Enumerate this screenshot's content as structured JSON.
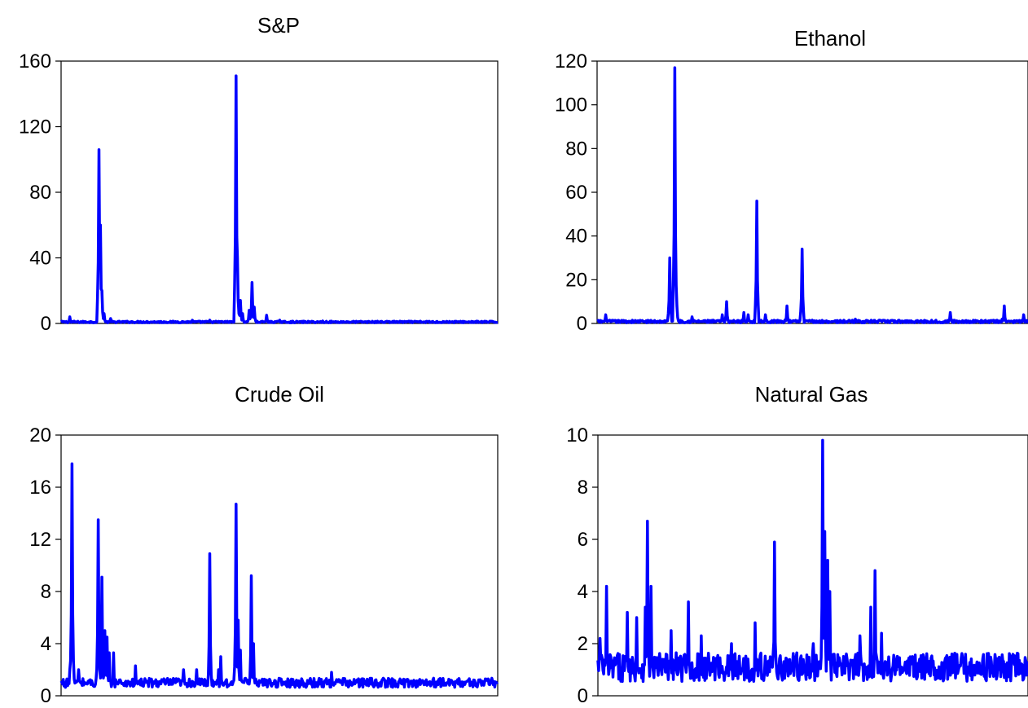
{
  "chart_data": [
    {
      "type": "line",
      "title": "S&P",
      "xlabel": "",
      "ylabel": "",
      "ylim": [
        0,
        160
      ],
      "yticks": [
        0,
        40,
        80,
        120,
        160
      ],
      "ytick_labels": [
        "0",
        "40",
        "80",
        "120",
        "160"
      ],
      "n_points": 600,
      "grid": false,
      "color": "#0000ff",
      "baseline": {
        "level": 0.9,
        "noise": 0.5
      },
      "spikes": [
        [
          0.02,
          4
        ],
        [
          0.086,
          106
        ],
        [
          0.09,
          60
        ],
        [
          0.094,
          20
        ],
        [
          0.099,
          6
        ],
        [
          0.113,
          3
        ],
        [
          0.3,
          2
        ],
        [
          0.34,
          2
        ],
        [
          0.4,
          151
        ],
        [
          0.404,
          40
        ],
        [
          0.41,
          14
        ],
        [
          0.415,
          6
        ],
        [
          0.43,
          8
        ],
        [
          0.437,
          25
        ],
        [
          0.443,
          10
        ],
        [
          0.47,
          5
        ],
        [
          0.5,
          2
        ],
        [
          0.6,
          1.5
        ],
        [
          0.75,
          1.2
        ]
      ],
      "x": [],
      "values": []
    },
    {
      "type": "line",
      "title": "Ethanol",
      "xlabel": "",
      "ylabel": "",
      "ylim": [
        0,
        120
      ],
      "yticks": [
        0,
        20,
        40,
        60,
        80,
        100,
        120
      ],
      "ytick_labels": [
        "0",
        "20",
        "40",
        "60",
        "80",
        "100",
        "120"
      ],
      "n_points": 600,
      "grid": false,
      "color": "#0000ff",
      "baseline": {
        "level": 0.9,
        "noise": 0.6
      },
      "spikes": [
        [
          0.02,
          4
        ],
        [
          0.168,
          30
        ],
        [
          0.18,
          117
        ],
        [
          0.185,
          8
        ],
        [
          0.22,
          3
        ],
        [
          0.29,
          4
        ],
        [
          0.3,
          10
        ],
        [
          0.34,
          5
        ],
        [
          0.35,
          4
        ],
        [
          0.37,
          56
        ],
        [
          0.39,
          4
        ],
        [
          0.44,
          8
        ],
        [
          0.475,
          34
        ],
        [
          0.6,
          2
        ],
        [
          0.82,
          5
        ],
        [
          0.94,
          2
        ],
        [
          0.945,
          8
        ],
        [
          0.99,
          4
        ]
      ],
      "x": [],
      "values": []
    },
    {
      "type": "line",
      "title": "Crude Oil",
      "xlabel": "",
      "ylabel": "",
      "ylim": [
        0,
        20
      ],
      "yticks": [
        0,
        4,
        8,
        12,
        16,
        20
      ],
      "ytick_labels": [
        "0",
        "4",
        "8",
        "12",
        "16",
        "20"
      ],
      "n_points": 600,
      "grid": false,
      "color": "#0000ff",
      "baseline": {
        "level": 1.0,
        "noise": 0.35
      },
      "spikes": [
        [
          0.02,
          2
        ],
        [
          0.025,
          17.8
        ],
        [
          0.04,
          2
        ],
        [
          0.085,
          13.5
        ],
        [
          0.093,
          9.1
        ],
        [
          0.1,
          5
        ],
        [
          0.105,
          4.5
        ],
        [
          0.11,
          3.3
        ],
        [
          0.12,
          3.3
        ],
        [
          0.17,
          2.3
        ],
        [
          0.28,
          2
        ],
        [
          0.31,
          2
        ],
        [
          0.34,
          1.5
        ],
        [
          0.34,
          10.9
        ],
        [
          0.36,
          2
        ],
        [
          0.365,
          3
        ],
        [
          0.4,
          14.7
        ],
        [
          0.405,
          5.8
        ],
        [
          0.41,
          3.5
        ],
        [
          0.435,
          9.2
        ],
        [
          0.44,
          4
        ],
        [
          0.62,
          1.8
        ]
      ],
      "x": [],
      "values": []
    },
    {
      "type": "line",
      "title": "Natural Gas",
      "xlabel": "",
      "ylabel": "",
      "ylim": [
        0,
        10
      ],
      "yticks": [
        0,
        2,
        4,
        6,
        8,
        10
      ],
      "ytick_labels": [
        "0",
        "2",
        "4",
        "6",
        "8",
        "10"
      ],
      "n_points": 600,
      "grid": false,
      "color": "#0000ff",
      "baseline": {
        "level": 1.1,
        "noise": 0.55
      },
      "spikes": [
        [
          0.005,
          2.2
        ],
        [
          0.02,
          4.2
        ],
        [
          0.068,
          3.2
        ],
        [
          0.09,
          3
        ],
        [
          0.11,
          3.4
        ],
        [
          0.115,
          6.7
        ],
        [
          0.123,
          4.2
        ],
        [
          0.17,
          2.5
        ],
        [
          0.21,
          3.6
        ],
        [
          0.24,
          2.3
        ],
        [
          0.31,
          2
        ],
        [
          0.365,
          2.8
        ],
        [
          0.41,
          5.9
        ],
        [
          0.5,
          2
        ],
        [
          0.522,
          9.8
        ],
        [
          0.528,
          6.3
        ],
        [
          0.535,
          5.2
        ],
        [
          0.54,
          4
        ],
        [
          0.61,
          2.3
        ],
        [
          0.635,
          3.4
        ],
        [
          0.645,
          4.8
        ],
        [
          0.66,
          2.4
        ],
        [
          0.85,
          1.4
        ],
        [
          0.88,
          1.1
        ]
      ],
      "x": [],
      "values": []
    }
  ]
}
